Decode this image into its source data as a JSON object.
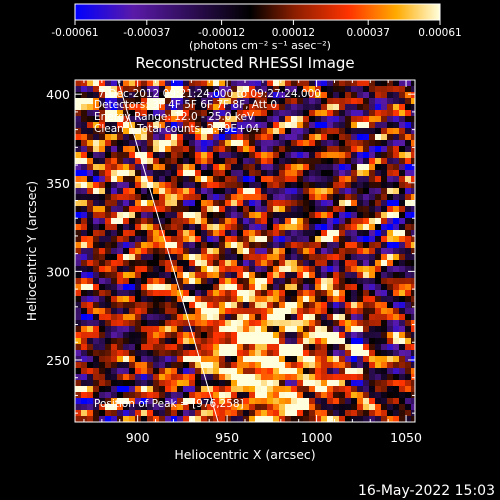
{
  "colorbar": {
    "tick_labels": [
      "-0.00061",
      "-0.00037",
      "-0.00012",
      "0.00012",
      "0.00037",
      "0.00061"
    ],
    "units_label": "(photons cm⁻² s⁻¹ asec⁻²)",
    "range": [
      -0.00061,
      0.00061
    ],
    "colors": [
      "#0000ff",
      "#5a1aa8",
      "#000000",
      "#8a1e00",
      "#ff3300",
      "#ffaa00",
      "#ffffdd"
    ]
  },
  "chart_data": {
    "type": "heatmap",
    "title": "Reconstructed RHESSI Image",
    "xlabel": "Heliocentric X (arcsec)",
    "ylabel": "Heliocentric Y (arcsec)",
    "xlim": [
      865,
      1055
    ],
    "ylim": [
      215,
      408
    ],
    "xticks": [
      900,
      950,
      1000,
      1050
    ],
    "yticks": [
      250,
      300,
      350,
      400
    ],
    "peak": {
      "x": 976,
      "y": 258
    },
    "limb_line": [
      [
        889,
        408
      ],
      [
        945,
        215
      ]
    ],
    "annotations": [
      "7-Dec-2012 09:21:24.000 to 09:27:24.000",
      "Detectors: 3F 4F 5F 6F 7F 8F, Att 0",
      "Energy Range: 12.0 - 25.0 keV",
      "Clean    Total counts: 2.49E+04",
      "Position of Peak = [976,258]"
    ]
  },
  "footer": {
    "timestamp": "16-May-2022 15:03"
  }
}
